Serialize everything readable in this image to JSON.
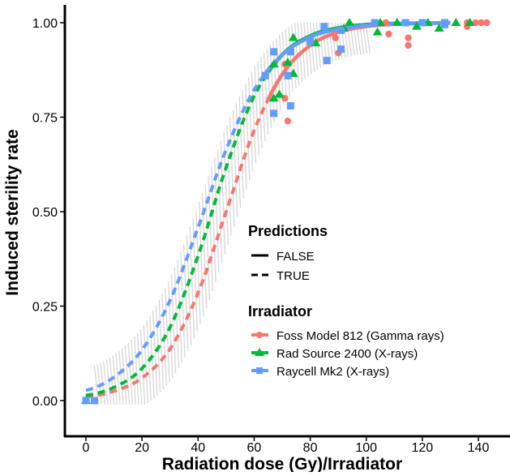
{
  "chart_data": {
    "type": "scatter",
    "title": "",
    "xlabel": "Radiation dose (Gy)/Irradiator",
    "ylabel": "Induced sterility rate",
    "xlim": [
      -7,
      152
    ],
    "ylim": [
      -0.1,
      1.03
    ],
    "x_ticks": [
      0,
      20,
      40,
      60,
      80,
      100,
      120,
      140
    ],
    "x_tick_labels": [
      "0",
      "20",
      "40",
      "60",
      "80",
      "100",
      "120",
      "140"
    ],
    "y_ticks": [
      0,
      0.25,
      0.5,
      0.75,
      1.0
    ],
    "y_tick_labels": [
      "0.00",
      "0.25",
      "0.50",
      "0.75",
      "1.00"
    ],
    "grid": false,
    "legend": {
      "placement": "center-right",
      "predictions_title": "Predictions",
      "predictions_items": [
        "FALSE",
        "TRUE"
      ],
      "irradiator_title": "Irradiator"
    },
    "curve_x": [
      0,
      10,
      20,
      30,
      40,
      50,
      60,
      70,
      80,
      90,
      100,
      110,
      120,
      130
    ],
    "series": [
      {
        "name": "Foss Model 812 (Gamma rays)",
        "color": "#f8766d",
        "marker": "circle",
        "observed_from_x": 65,
        "curve_y": [
          0.01,
          0.025,
          0.06,
          0.137,
          0.285,
          0.5,
          0.715,
          0.863,
          0.94,
          0.975,
          0.99,
          0.996,
          0.998,
          0.999
        ],
        "points": [
          [
            0,
            0
          ],
          [
            72,
            0.74
          ],
          [
            71,
            0.8
          ],
          [
            71,
            0.89
          ],
          [
            90,
            0.92
          ],
          [
            89,
            0.96
          ],
          [
            108,
            0.97
          ],
          [
            115,
            0.96
          ],
          [
            115,
            0.94
          ],
          [
            107,
            1.0
          ],
          [
            136,
            0.99
          ],
          [
            136,
            1.0
          ],
          [
            139,
            1.0
          ],
          [
            141,
            1.0
          ],
          [
            143,
            1.0
          ]
        ]
      },
      {
        "name": "Rad Source 2400 (X-rays)",
        "color": "#00ba38",
        "marker": "triangle",
        "observed_from_x": 65,
        "curve_y": [
          0.014,
          0.035,
          0.085,
          0.194,
          0.383,
          0.617,
          0.806,
          0.915,
          0.965,
          0.986,
          0.995,
          0.998,
          0.999,
          1.0
        ],
        "points": [
          [
            0,
            0
          ],
          [
            74,
            0.96
          ],
          [
            67,
            0.89
          ],
          [
            72,
            0.895
          ],
          [
            74,
            0.865
          ],
          [
            67,
            0.8
          ],
          [
            69,
            0.81
          ],
          [
            82,
            0.946
          ],
          [
            92,
            0.985
          ],
          [
            94,
            1.0
          ],
          [
            105,
            1.0
          ],
          [
            104,
            0.975
          ],
          [
            111,
            1.0
          ],
          [
            122,
            1.0
          ],
          [
            118,
            0.99
          ],
          [
            126,
            0.985
          ],
          [
            132,
            1.0
          ],
          [
            137,
            1.0
          ]
        ]
      },
      {
        "name": "Raycell Mk2 (X-rays)",
        "color": "#619cff",
        "marker": "square",
        "observed_from_x": 63,
        "curve_y": [
          0.027,
          0.062,
          0.134,
          0.265,
          0.458,
          0.664,
          0.822,
          0.915,
          0.962,
          0.983,
          0.993,
          0.997,
          0.999,
          1.0
        ],
        "points": [
          [
            0,
            0
          ],
          [
            3,
            0
          ],
          [
            67,
            0.923
          ],
          [
            73,
            0.923
          ],
          [
            64,
            0.86
          ],
          [
            80,
            0.95
          ],
          [
            85,
            0.99
          ],
          [
            91,
            0.98
          ],
          [
            86,
            0.9
          ],
          [
            73,
            0.78
          ],
          [
            67,
            0.76
          ],
          [
            72,
            0.86
          ],
          [
            91,
            0.93
          ],
          [
            103,
            1.0
          ],
          [
            114,
            1.0
          ],
          [
            120,
            1.0
          ],
          [
            128,
            0.995
          ],
          [
            128,
            1.0
          ]
        ]
      }
    ]
  }
}
